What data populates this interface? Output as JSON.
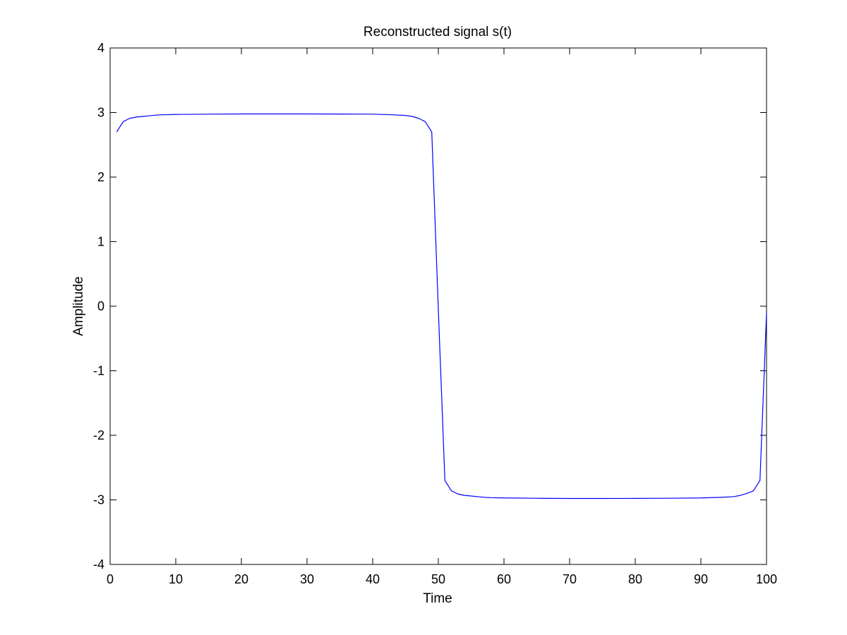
{
  "chart_data": {
    "type": "line",
    "title": "Reconstructed signal s(t)",
    "xlabel": "Time",
    "ylabel": "Amplitude",
    "xlim": [
      0,
      100
    ],
    "ylim": [
      -4,
      4
    ],
    "xticks": [
      0,
      10,
      20,
      30,
      40,
      50,
      60,
      70,
      80,
      90,
      100
    ],
    "yticks": [
      -4,
      -3,
      -2,
      -1,
      0,
      1,
      2,
      3,
      4
    ],
    "xtick_labels": [
      "0",
      "10",
      "20",
      "30",
      "40",
      "50",
      "60",
      "70",
      "80",
      "90",
      "100"
    ],
    "ytick_labels": [
      "-4",
      "-3",
      "-2",
      "-1",
      "0",
      "1",
      "2",
      "3",
      "4"
    ],
    "grid": false,
    "series": [
      {
        "color": "#0000ff",
        "x": [
          1,
          2,
          3,
          4,
          5,
          6,
          7,
          8,
          10,
          15,
          20,
          25,
          30,
          35,
          40,
          43,
          45,
          46,
          47,
          48,
          49,
          50,
          51,
          52,
          53,
          54,
          55,
          56,
          57,
          58,
          60,
          65,
          70,
          75,
          80,
          85,
          90,
          93,
          95,
          96,
          97,
          98,
          99,
          100
        ],
        "y": [
          2.7,
          2.86,
          2.91,
          2.93,
          2.94,
          2.95,
          2.96,
          2.965,
          2.97,
          2.975,
          2.978,
          2.978,
          2.978,
          2.977,
          2.975,
          2.965,
          2.955,
          2.94,
          2.91,
          2.86,
          2.7,
          -0.05,
          -2.7,
          -2.86,
          -2.91,
          -2.93,
          -2.94,
          -2.95,
          -2.96,
          -2.965,
          -2.97,
          -2.975,
          -2.978,
          -2.978,
          -2.977,
          -2.975,
          -2.97,
          -2.96,
          -2.95,
          -2.93,
          -2.9,
          -2.86,
          -2.7,
          -0.1
        ]
      }
    ]
  }
}
